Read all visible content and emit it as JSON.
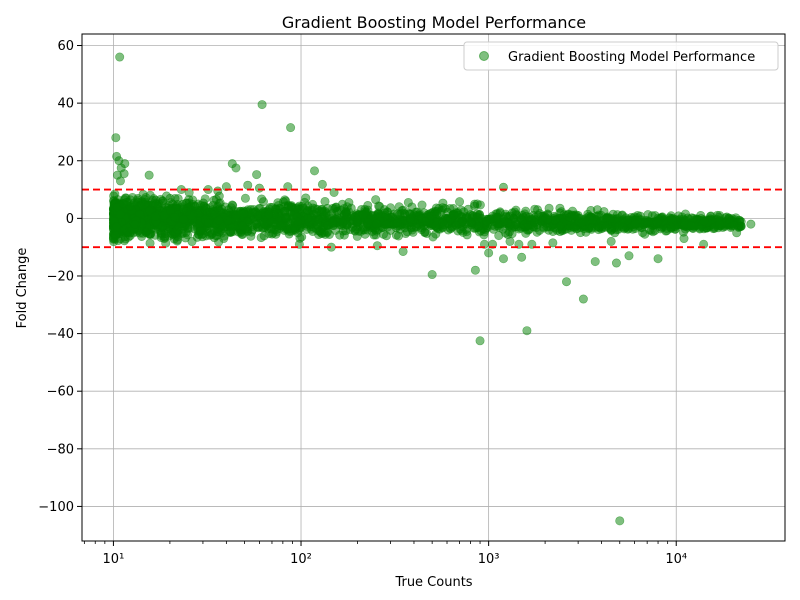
{
  "chart_data": {
    "type": "scatter",
    "title": "Gradient Boosting Model Performance",
    "xlabel": "True Counts",
    "ylabel": "Fold Change",
    "xscale": "log",
    "xlim": [
      6.8,
      38000
    ],
    "ylim": [
      -112,
      64
    ],
    "x_ticks": [
      10,
      100,
      1000,
      10000
    ],
    "x_tick_labels": [
      "10¹",
      "10²",
      "10³",
      "10⁴"
    ],
    "y_ticks": [
      60,
      40,
      20,
      0,
      -20,
      -40,
      -60,
      -80,
      -100
    ],
    "y_tick_labels": [
      "60",
      "40",
      "20",
      "0",
      "−20",
      "−40",
      "−60",
      "−80",
      "−100"
    ],
    "grid": true,
    "legend_position": "top-right",
    "point_color": "#008000",
    "point_alpha": 0.5,
    "threshold_color": "#ff0000",
    "thresholds": [
      10,
      -10
    ],
    "series": [
      {
        "name": "Gradient Boosting Model Performance",
        "outliers": [
          [
            10.8,
            56
          ],
          [
            10.3,
            28
          ],
          [
            10.4,
            21.5
          ],
          [
            10.7,
            20
          ],
          [
            11,
            17.5
          ],
          [
            11.5,
            19
          ],
          [
            10.5,
            15
          ],
          [
            11.4,
            15.5
          ],
          [
            10.9,
            13
          ],
          [
            15.5,
            15
          ],
          [
            43,
            19
          ],
          [
            45,
            17.5
          ],
          [
            58,
            15.2
          ],
          [
            62,
            39.5
          ],
          [
            88,
            31.5
          ],
          [
            85,
            11
          ],
          [
            118,
            16.5
          ],
          [
            130,
            11.8
          ],
          [
            40,
            11
          ],
          [
            52,
            11.5
          ],
          [
            23,
            10
          ],
          [
            1200,
            10.8
          ],
          [
            60,
            10.5
          ],
          [
            150,
            9
          ],
          [
            98,
            -9
          ],
          [
            145,
            -10
          ],
          [
            255,
            -9.5
          ],
          [
            350,
            -11.5
          ],
          [
            500,
            -19.5
          ],
          [
            850,
            -18
          ],
          [
            900,
            -42.5
          ],
          [
            950,
            -9
          ],
          [
            1000,
            -12
          ],
          [
            1050,
            -9
          ],
          [
            1200,
            -14
          ],
          [
            1500,
            -13.5
          ],
          [
            1450,
            -9
          ],
          [
            1300,
            -8
          ],
          [
            1700,
            -9
          ],
          [
            1600,
            -39
          ],
          [
            2200,
            -8.5
          ],
          [
            2600,
            -22
          ],
          [
            3200,
            -28
          ],
          [
            3700,
            -15
          ],
          [
            4500,
            -8
          ],
          [
            4800,
            -15.5
          ],
          [
            5000,
            -105
          ],
          [
            5600,
            -13
          ],
          [
            8000,
            -14
          ],
          [
            11000,
            -7
          ],
          [
            14000,
            -9
          ],
          [
            21000,
            -5
          ],
          [
            25000,
            -2
          ],
          [
            17000,
            -2
          ],
          [
            12000,
            -2.5
          ],
          [
            13500,
            1
          ],
          [
            11200,
            1.5
          ],
          [
            7200,
            -4
          ],
          [
            6800,
            -5.5
          ],
          [
            3000,
            1
          ],
          [
            2100,
            3.5
          ],
          [
            2800,
            2.5
          ],
          [
            3800,
            3
          ],
          [
            4200,
            -3
          ],
          [
            4700,
            -5
          ],
          [
            700,
            5.8
          ],
          [
            870,
            5
          ],
          [
            250,
            6.5
          ],
          [
            180,
            5.5
          ],
          [
            32,
            10
          ],
          [
            36,
            9.5
          ]
        ]
      }
    ]
  }
}
